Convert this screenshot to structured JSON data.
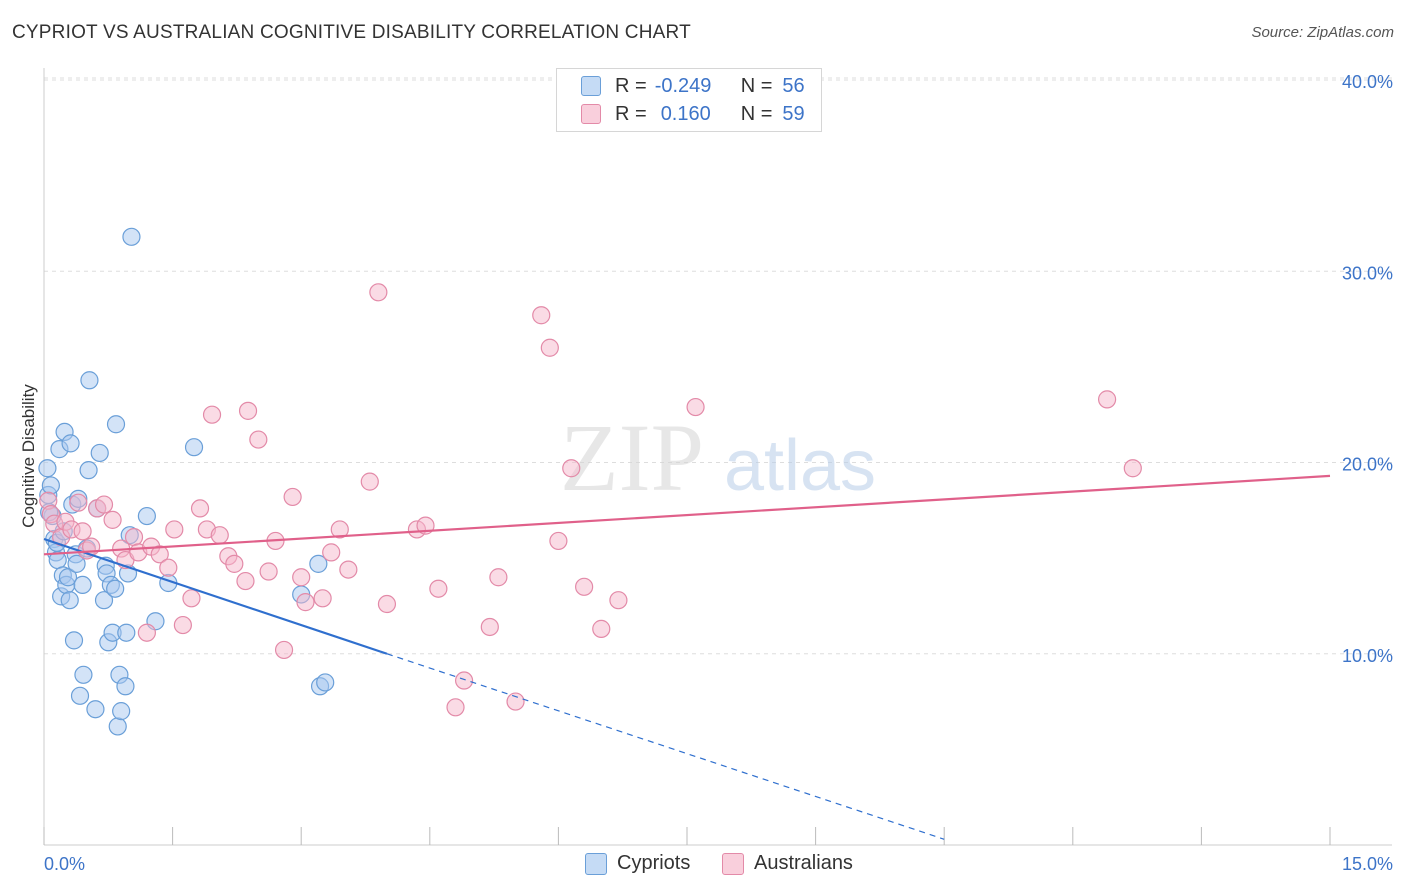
{
  "title": "CYPRIOT VS AUSTRALIAN COGNITIVE DISABILITY CORRELATION CHART",
  "source": "Source: ZipAtlas.com",
  "watermark": {
    "zip": "ZIP",
    "atlas": "atlas"
  },
  "legend": {
    "rows": [
      {
        "r_label": "R =",
        "r_value": "-0.249",
        "n_label": "N =",
        "n_value": "56"
      },
      {
        "r_label": "R =",
        "r_value": "0.160",
        "n_label": "N =",
        "n_value": "59"
      }
    ]
  },
  "bottom_legend": [
    "Cypriots",
    "Australians"
  ],
  "colors": {
    "cypriots_fill": "#a8c8f0",
    "cypriots_stroke": "#6a9fd8",
    "cypriots_line": "#2f6fce",
    "australians_fill": "#f5b8cc",
    "australians_stroke": "#e38aa8",
    "australians_line": "#e0608a",
    "tick_label": "#3d74c8",
    "grid": "#dddddd"
  },
  "chart_data": {
    "type": "scatter",
    "title": "CYPRIOT VS AUSTRALIAN COGNITIVE DISABILITY CORRELATION CHART",
    "xlabel": "",
    "ylabel": "Cognitive Disability",
    "xlim": [
      0,
      15
    ],
    "ylim": [
      0,
      40
    ],
    "x_tick_labels": [
      "0.0%",
      "15.0%"
    ],
    "y_ticks": [
      10,
      20,
      30,
      40
    ],
    "y_tick_labels": [
      "10.0%",
      "20.0%",
      "30.0%",
      "40.0%"
    ],
    "grid": true,
    "legend_position": "top-center",
    "series": [
      {
        "name": "Cypriots",
        "r": -0.249,
        "n": 56,
        "points": [
          [
            0.04,
            19.7
          ],
          [
            0.05,
            18.3
          ],
          [
            0.08,
            18.8
          ],
          [
            0.1,
            17.2
          ],
          [
            0.12,
            16.0
          ],
          [
            0.14,
            15.3
          ],
          [
            0.15,
            15.8
          ],
          [
            0.16,
            14.9
          ],
          [
            0.18,
            20.7
          ],
          [
            0.2,
            13.0
          ],
          [
            0.22,
            14.1
          ],
          [
            0.23,
            16.4
          ],
          [
            0.24,
            21.6
          ],
          [
            0.26,
            13.6
          ],
          [
            0.28,
            14.0
          ],
          [
            0.3,
            12.8
          ],
          [
            0.31,
            21.0
          ],
          [
            0.33,
            17.8
          ],
          [
            0.35,
            10.7
          ],
          [
            0.37,
            15.2
          ],
          [
            0.38,
            14.7
          ],
          [
            0.4,
            18.1
          ],
          [
            0.42,
            7.8
          ],
          [
            0.45,
            13.6
          ],
          [
            0.46,
            8.9
          ],
          [
            0.5,
            15.5
          ],
          [
            0.52,
            19.6
          ],
          [
            0.53,
            24.3
          ],
          [
            0.6,
            7.1
          ],
          [
            0.62,
            17.6
          ],
          [
            0.65,
            20.5
          ],
          [
            0.7,
            12.8
          ],
          [
            0.72,
            14.6
          ],
          [
            0.73,
            14.2
          ],
          [
            0.75,
            10.6
          ],
          [
            0.78,
            13.6
          ],
          [
            0.8,
            11.1
          ],
          [
            0.83,
            13.4
          ],
          [
            0.84,
            22.0
          ],
          [
            0.86,
            6.2
          ],
          [
            0.88,
            8.9
          ],
          [
            0.9,
            7.0
          ],
          [
            0.95,
            8.3
          ],
          [
            0.96,
            11.1
          ],
          [
            0.98,
            14.2
          ],
          [
            1.0,
            16.2
          ],
          [
            1.02,
            31.8
          ],
          [
            1.2,
            17.2
          ],
          [
            1.3,
            11.7
          ],
          [
            1.45,
            13.7
          ],
          [
            1.75,
            20.8
          ],
          [
            3.0,
            13.1
          ],
          [
            3.2,
            14.7
          ],
          [
            3.22,
            8.3
          ],
          [
            3.28,
            8.5
          ],
          [
            0.06,
            17.4
          ]
        ],
        "trend": {
          "x": [
            0.0,
            4.0
          ],
          "y": [
            16.0,
            10.0
          ]
        },
        "trend_dashed": {
          "x": [
            4.0,
            10.5
          ],
          "y": [
            10.0,
            0.3
          ]
        }
      },
      {
        "name": "Australians",
        "r": 0.16,
        "n": 59,
        "points": [
          [
            0.05,
            18.0
          ],
          [
            0.08,
            17.3
          ],
          [
            0.12,
            16.8
          ],
          [
            0.2,
            16.1
          ],
          [
            0.25,
            16.9
          ],
          [
            0.32,
            16.5
          ],
          [
            0.4,
            17.9
          ],
          [
            0.45,
            16.4
          ],
          [
            0.5,
            15.4
          ],
          [
            0.55,
            15.6
          ],
          [
            0.62,
            17.6
          ],
          [
            0.7,
            17.8
          ],
          [
            0.8,
            17.0
          ],
          [
            0.9,
            15.5
          ],
          [
            0.95,
            14.9
          ],
          [
            1.05,
            16.1
          ],
          [
            1.1,
            15.3
          ],
          [
            1.2,
            11.1
          ],
          [
            1.25,
            15.6
          ],
          [
            1.35,
            15.2
          ],
          [
            1.45,
            14.5
          ],
          [
            1.52,
            16.5
          ],
          [
            1.62,
            11.5
          ],
          [
            1.72,
            12.9
          ],
          [
            1.82,
            17.6
          ],
          [
            1.9,
            16.5
          ],
          [
            1.96,
            22.5
          ],
          [
            2.05,
            16.2
          ],
          [
            2.15,
            15.1
          ],
          [
            2.22,
            14.7
          ],
          [
            2.35,
            13.8
          ],
          [
            2.38,
            22.7
          ],
          [
            2.5,
            21.2
          ],
          [
            2.62,
            14.3
          ],
          [
            2.7,
            15.9
          ],
          [
            2.8,
            10.2
          ],
          [
            2.9,
            18.2
          ],
          [
            3.0,
            14.0
          ],
          [
            3.05,
            12.7
          ],
          [
            3.25,
            12.9
          ],
          [
            3.35,
            15.3
          ],
          [
            3.45,
            16.5
          ],
          [
            3.55,
            14.4
          ],
          [
            3.8,
            19.0
          ],
          [
            3.9,
            28.9
          ],
          [
            4.0,
            12.6
          ],
          [
            4.35,
            16.5
          ],
          [
            4.45,
            16.7
          ],
          [
            4.6,
            13.4
          ],
          [
            4.8,
            7.2
          ],
          [
            4.9,
            8.6
          ],
          [
            5.2,
            11.4
          ],
          [
            5.3,
            14.0
          ],
          [
            5.5,
            7.5
          ],
          [
            5.8,
            27.7
          ],
          [
            5.9,
            26.0
          ],
          [
            6.0,
            15.9
          ],
          [
            6.15,
            19.7
          ],
          [
            6.3,
            13.5
          ]
        ],
        "trend": {
          "x": [
            0.0,
            15.0
          ],
          "y": [
            15.2,
            19.3
          ]
        }
      }
    ],
    "extra_points": {
      "Australians": [
        [
          6.5,
          11.3
        ],
        [
          6.7,
          12.8
        ],
        [
          7.6,
          22.9
        ],
        [
          12.4,
          23.3
        ],
        [
          12.7,
          19.7
        ]
      ]
    }
  }
}
